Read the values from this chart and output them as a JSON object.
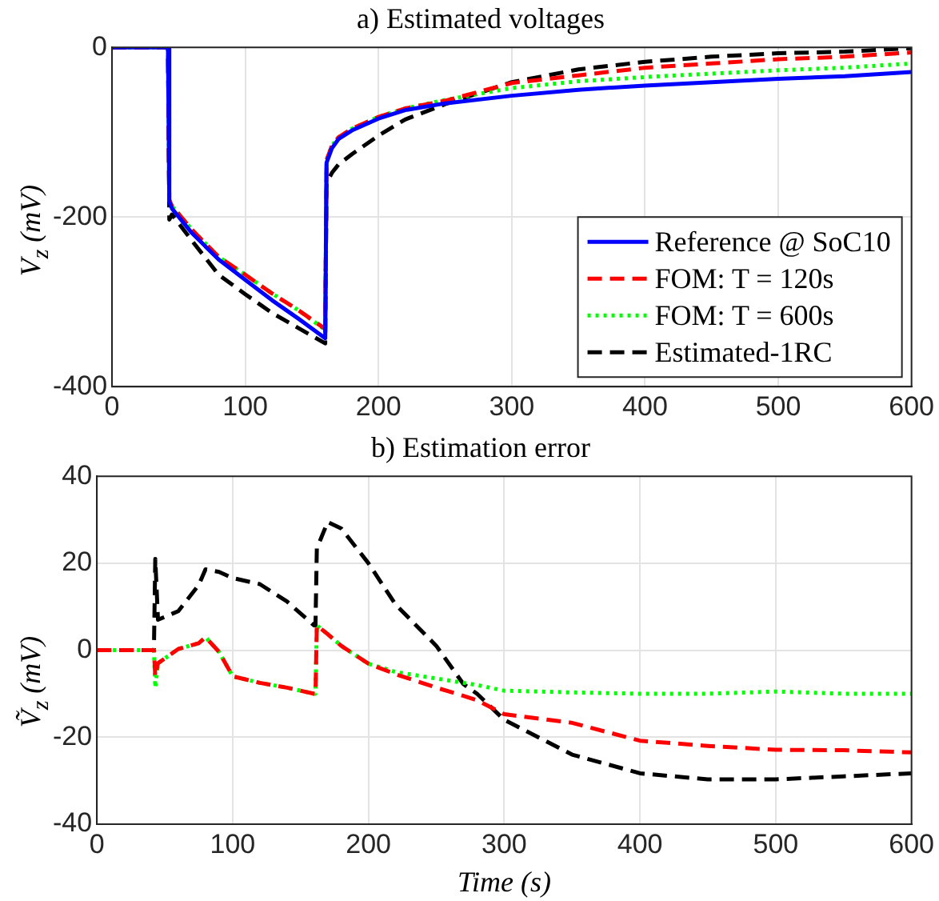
{
  "chart_data": [
    {
      "type": "line",
      "title": "a) Estimated voltages",
      "ylabel": "V$_{z}$ (mV)",
      "x": [
        0,
        42,
        43,
        45,
        60,
        80,
        100,
        120,
        140,
        160,
        161,
        165,
        170,
        180,
        200,
        220,
        250,
        300,
        350,
        400,
        450,
        500,
        550,
        600
      ],
      "series": [
        {
          "name": "Reference @ SoC10",
          "color": "#0000ff",
          "line_style": "solid",
          "values": [
            0,
            0,
            -182,
            -190,
            -219,
            -250,
            -274,
            -298,
            -320,
            -343,
            -136,
            -119,
            -108,
            -98,
            -84,
            -74,
            -66,
            -57,
            -50,
            -45,
            -41,
            -37,
            -34,
            -29
          ]
        },
        {
          "name": "FOM: T = 120s",
          "color": "#ff0000",
          "line_style": "dashed",
          "values": [
            0,
            0,
            -180,
            -187,
            -215,
            -247,
            -268,
            -290,
            -310,
            -332,
            -133,
            -116,
            -106,
            -96,
            -82,
            -72,
            -63,
            -42,
            -33,
            -24,
            -19,
            -14,
            -11,
            -6
          ]
        },
        {
          "name": "FOM: T = 600s",
          "color": "#00ff00",
          "line_style": "dotted",
          "values": [
            0,
            0,
            -180,
            -187,
            -215,
            -247,
            -268,
            -290,
            -310,
            -333,
            -133,
            -116,
            -106,
            -96,
            -82,
            -72,
            -62,
            -48,
            -40,
            -35,
            -31,
            -27,
            -24,
            -19
          ]
        },
        {
          "name": "Estimated-1RC",
          "color": "#000000",
          "line_style": "dashed",
          "values": [
            0,
            0,
            -203,
            -197,
            -228,
            -268,
            -291,
            -313,
            -331,
            -349,
            -160,
            -148,
            -138,
            -126,
            -104,
            -85,
            -67,
            -41,
            -26,
            -17,
            -11,
            -7,
            -5,
            -1
          ]
        }
      ],
      "xlim": [
        0,
        600
      ],
      "xticks": [
        0,
        100,
        200,
        300,
        400,
        500,
        600
      ],
      "ylim": [
        -400,
        0
      ],
      "yticks": [
        -400,
        -200,
        0
      ],
      "grid": true,
      "legend": "bottom right",
      "marker": "none"
    },
    {
      "type": "line",
      "title": "b) Estimation error",
      "xlabel": "Time (s)",
      "ylabel": "Ṽ$_{z}$ (mV)",
      "x": [
        0,
        42,
        43,
        45,
        60,
        75,
        80,
        90,
        100,
        120,
        140,
        160,
        161,
        162,
        170,
        180,
        200,
        220,
        250,
        270,
        280,
        300,
        350,
        400,
        450,
        500,
        550,
        600
      ],
      "series": [
        {
          "color": "#ff0000",
          "line_style": "dashed",
          "values": [
            0,
            0,
            -6,
            -3,
            0.3,
            1.6,
            3,
            -0.4,
            -6,
            -7.5,
            -8.6,
            -10,
            -10,
            5.7,
            3.7,
            1,
            -3.1,
            -5.5,
            -8.6,
            -10.5,
            -11.5,
            -14.7,
            -16.7,
            -20.8,
            -22,
            -22.9,
            -23,
            -23.5
          ]
        },
        {
          "color": "#00ff00",
          "line_style": "dotted",
          "values": [
            0,
            0,
            -8.6,
            -3,
            0.3,
            1.6,
            3,
            -0.4,
            -6,
            -7.5,
            -8.6,
            -10,
            -10,
            5.7,
            3.7,
            1,
            -3.1,
            -5,
            -6.5,
            -7.5,
            -8,
            -9.3,
            -9.7,
            -10,
            -10,
            -9.5,
            -10,
            -10
          ]
        },
        {
          "color": "#000000",
          "line_style": "dashed",
          "values": [
            0,
            0,
            21,
            7,
            9,
            15,
            18.6,
            18,
            16.6,
            15.2,
            11.2,
            5.7,
            5.7,
            23.4,
            29.5,
            28,
            20,
            10.5,
            1,
            -7.8,
            -10,
            -16,
            -24,
            -28.3,
            -29.7,
            -29.7,
            -29,
            -28.3
          ]
        }
      ],
      "xlim": [
        0,
        600
      ],
      "xticks": [
        0,
        100,
        200,
        300,
        400,
        500,
        600
      ],
      "ylim": [
        -40,
        40
      ],
      "yticks": [
        -40,
        -20,
        0,
        20,
        40
      ],
      "grid": true,
      "marker": "none"
    }
  ]
}
